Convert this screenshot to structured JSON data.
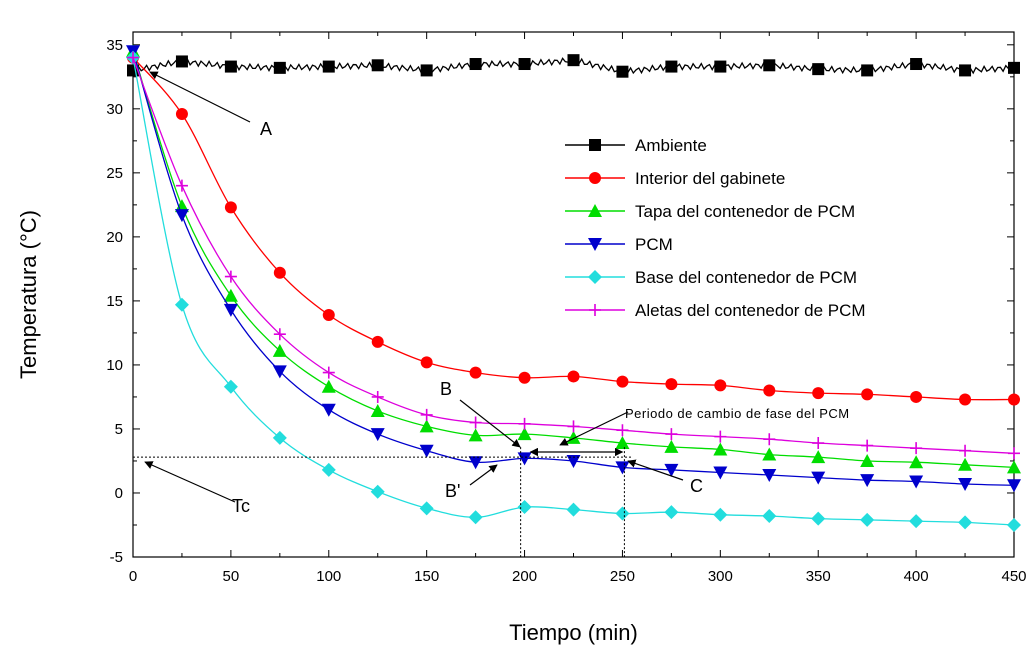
{
  "chart_data": {
    "type": "line",
    "xlabel": "Tiempo (min)",
    "ylabel": "Temperatura (°C)",
    "xlim": [
      0,
      450
    ],
    "ylim": [
      -5,
      36
    ],
    "x_ticks": [
      "0",
      "50",
      "100",
      "150",
      "200",
      "250",
      "300",
      "350",
      "400",
      "450"
    ],
    "y_ticks": [
      "-5",
      "0",
      "5",
      "10",
      "15",
      "20",
      "25",
      "30",
      "35"
    ],
    "legend_position": "right",
    "grid": false,
    "x": [
      0,
      25,
      50,
      75,
      100,
      125,
      150,
      175,
      200,
      225,
      250,
      275,
      300,
      325,
      350,
      375,
      400,
      425,
      450
    ],
    "series": [
      {
        "name": "Ambiente",
        "color": "#000000",
        "marker": "square",
        "values": [
          33.0,
          33.7,
          33.3,
          33.2,
          33.3,
          33.4,
          33.0,
          33.5,
          33.5,
          33.8,
          32.9,
          33.3,
          33.3,
          33.4,
          33.1,
          33.0,
          33.5,
          33.0,
          33.2
        ]
      },
      {
        "name": "Interior del gabinete",
        "color": "#ff0000",
        "marker": "circle",
        "values": [
          34.0,
          29.6,
          22.3,
          17.2,
          13.9,
          11.8,
          10.2,
          9.4,
          9.0,
          9.1,
          8.7,
          8.5,
          8.4,
          8.0,
          7.8,
          7.7,
          7.5,
          7.3,
          7.3
        ]
      },
      {
        "name": "Tapa del contenedor de PCM",
        "color": "#00dd00",
        "marker": "triangle-up",
        "values": [
          34.5,
          22.4,
          15.4,
          11.1,
          8.3,
          6.4,
          5.2,
          4.5,
          4.6,
          4.3,
          3.9,
          3.6,
          3.4,
          3.0,
          2.8,
          2.5,
          2.4,
          2.2,
          2.0
        ]
      },
      {
        "name": "PCM",
        "color": "#0000cc",
        "marker": "triangle-down",
        "values": [
          34.5,
          21.7,
          14.3,
          9.5,
          6.5,
          4.6,
          3.3,
          2.4,
          2.7,
          2.5,
          2.0,
          1.8,
          1.6,
          1.4,
          1.2,
          1.0,
          0.9,
          0.7,
          0.6
        ]
      },
      {
        "name": "Base del contenedor de PCM",
        "color": "#22dddd",
        "marker": "diamond",
        "values": [
          34.0,
          14.7,
          8.3,
          4.3,
          1.8,
          0.1,
          -1.2,
          -1.9,
          -1.1,
          -1.3,
          -1.6,
          -1.5,
          -1.7,
          -1.8,
          -2.0,
          -2.1,
          -2.2,
          -2.3,
          -2.5
        ]
      },
      {
        "name": "Aletas del contenedor de PCM",
        "color": "#dd00dd",
        "marker": "plus",
        "values": [
          34.0,
          24.0,
          16.9,
          12.4,
          9.4,
          7.5,
          6.1,
          5.5,
          5.4,
          5.2,
          4.9,
          4.6,
          4.4,
          4.2,
          3.9,
          3.7,
          3.5,
          3.3,
          3.1
        ]
      }
    ],
    "annotations": {
      "A": "A",
      "B": "B",
      "B_prime": "B'",
      "C": "C",
      "Tc": "Tc",
      "phase": "Periodo de cambio de fase del PCM"
    }
  }
}
